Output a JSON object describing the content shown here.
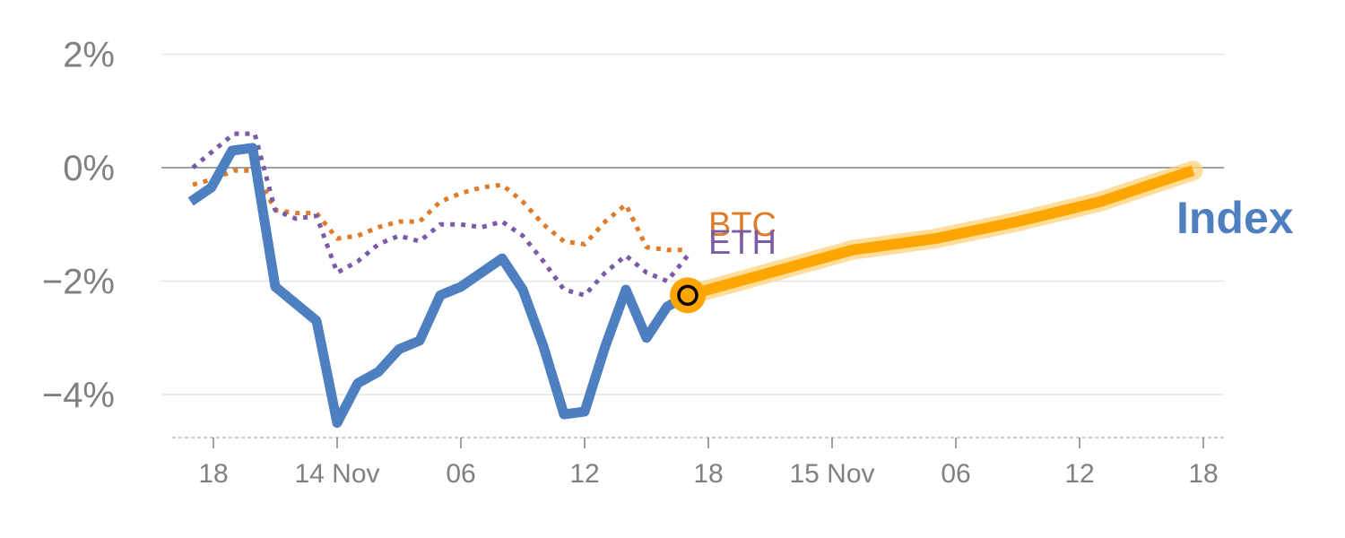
{
  "chart_data": {
    "type": "line",
    "ylim": [
      -4.75,
      2
    ],
    "y_ticks": [
      2,
      0,
      -2,
      -4
    ],
    "y_tick_labels": [
      "2%",
      "0%",
      "−2%",
      "−4%"
    ],
    "x_ticks": [
      {
        "label": "18",
        "t": 0
      },
      {
        "label": "14 Nov",
        "t": 6
      },
      {
        "label": "06",
        "t": 12
      },
      {
        "label": "12",
        "t": 18
      },
      {
        "label": "18",
        "t": 24
      },
      {
        "label": "15 Nov",
        "t": 30
      },
      {
        "label": "06",
        "t": 36
      },
      {
        "label": "12",
        "t": 42
      },
      {
        "label": "18",
        "t": 48
      }
    ],
    "grid": true,
    "colors": {
      "index": "#4e7fc0",
      "btc": "#e07b29",
      "eth": "#7b5aa6",
      "forecast": "#ffa500",
      "forecast_glow": "#ffd27a"
    },
    "series": [
      {
        "name": "Index",
        "style": "solid",
        "points": [
          [
            -1.1,
            -0.6
          ],
          [
            -0.1,
            -0.35
          ],
          [
            0.9,
            0.3
          ],
          [
            1.9,
            0.35
          ],
          [
            3.0,
            -2.1
          ],
          [
            4.0,
            -2.4
          ],
          [
            5.0,
            -2.7
          ],
          [
            6.0,
            -4.5
          ],
          [
            7.0,
            -3.8
          ],
          [
            8.0,
            -3.6
          ],
          [
            9.0,
            -3.2
          ],
          [
            10.0,
            -3.05
          ],
          [
            11.0,
            -2.25
          ],
          [
            12.0,
            -2.1
          ],
          [
            13.0,
            -1.85
          ],
          [
            14.0,
            -1.6
          ],
          [
            15.0,
            -2.15
          ],
          [
            16.0,
            -3.15
          ],
          [
            17.0,
            -4.35
          ],
          [
            18.0,
            -4.3
          ],
          [
            19.0,
            -3.15
          ],
          [
            20.0,
            -2.15
          ],
          [
            21.0,
            -3.0
          ],
          [
            22.0,
            -2.45
          ],
          [
            23.0,
            -2.25
          ]
        ]
      },
      {
        "name": "BTC",
        "style": "dotted",
        "points": [
          [
            -1.0,
            -0.3
          ],
          [
            0.0,
            -0.2
          ],
          [
            1.0,
            -0.05
          ],
          [
            2.0,
            -0.05
          ],
          [
            3.0,
            -0.75
          ],
          [
            4.0,
            -0.8
          ],
          [
            5.0,
            -0.8
          ],
          [
            6.0,
            -1.25
          ],
          [
            7.0,
            -1.2
          ],
          [
            8.0,
            -1.05
          ],
          [
            9.0,
            -0.95
          ],
          [
            10.0,
            -0.95
          ],
          [
            11.0,
            -0.6
          ],
          [
            12.0,
            -0.45
          ],
          [
            13.0,
            -0.35
          ],
          [
            14.0,
            -0.3
          ],
          [
            15.0,
            -0.6
          ],
          [
            16.0,
            -1.0
          ],
          [
            17.0,
            -1.3
          ],
          [
            18.0,
            -1.35
          ],
          [
            19.0,
            -0.95
          ],
          [
            20.0,
            -0.65
          ],
          [
            21.0,
            -1.4
          ],
          [
            22.0,
            -1.45
          ],
          [
            23.0,
            -1.45
          ]
        ]
      },
      {
        "name": "ETH",
        "style": "dotted",
        "points": [
          [
            -1.0,
            0.0
          ],
          [
            0.0,
            0.3
          ],
          [
            1.0,
            0.6
          ],
          [
            2.0,
            0.6
          ],
          [
            3.0,
            -0.75
          ],
          [
            4.0,
            -0.9
          ],
          [
            5.0,
            -0.85
          ],
          [
            6.0,
            -1.85
          ],
          [
            7.0,
            -1.65
          ],
          [
            8.0,
            -1.35
          ],
          [
            9.0,
            -1.2
          ],
          [
            10.0,
            -1.3
          ],
          [
            11.0,
            -1.0
          ],
          [
            12.0,
            -1.0
          ],
          [
            13.0,
            -1.05
          ],
          [
            14.0,
            -0.95
          ],
          [
            15.0,
            -1.2
          ],
          [
            16.0,
            -1.65
          ],
          [
            17.0,
            -2.15
          ],
          [
            18.0,
            -2.25
          ],
          [
            19.0,
            -1.85
          ],
          [
            20.0,
            -1.55
          ],
          [
            21.0,
            -1.85
          ],
          [
            22.0,
            -2.0
          ],
          [
            23.0,
            -1.55
          ]
        ]
      },
      {
        "name": "",
        "style": "forecast",
        "points": [
          [
            23.0,
            -2.25
          ],
          [
            27.0,
            -1.85
          ],
          [
            31.0,
            -1.45
          ],
          [
            35.0,
            -1.25
          ],
          [
            39.0,
            -0.95
          ],
          [
            43.0,
            -0.6
          ],
          [
            47.5,
            -0.05
          ]
        ]
      }
    ],
    "marker": {
      "t": 23.0,
      "y": -2.25
    },
    "labels": {
      "index": "Index",
      "btc": "BTC",
      "eth": "ETH"
    }
  }
}
